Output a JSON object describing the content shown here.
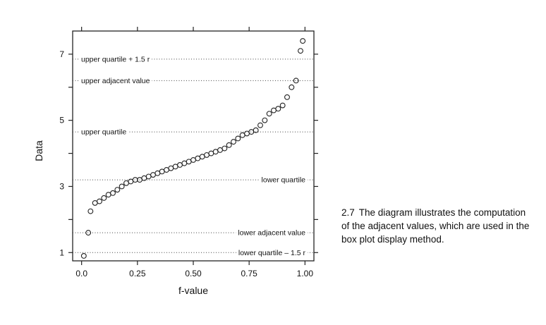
{
  "chart_data": {
    "type": "scatter",
    "title": "",
    "xlabel": "f-value",
    "ylabel": "Data",
    "xlim": [
      -0.04,
      1.04
    ],
    "ylim": [
      0.75,
      7.7
    ],
    "x_ticks": [
      0.0,
      0.25,
      0.5,
      0.75,
      1.0
    ],
    "x_tick_labels": [
      "0.0",
      "0.25",
      "0.50",
      "0.75",
      "1.00"
    ],
    "y_ticks": [
      1,
      3,
      5,
      7
    ],
    "y_tick_labels": [
      "1",
      "3",
      "5",
      "7"
    ],
    "grid": false,
    "reference_lines": [
      {
        "label": "upper quartile + 1.5 r",
        "y": 6.85,
        "label_side": "left"
      },
      {
        "label": "upper adjacent value",
        "y": 6.2,
        "label_side": "left"
      },
      {
        "label": "upper quartile",
        "y": 4.65,
        "label_side": "left"
      },
      {
        "label": "lower quartile",
        "y": 3.2,
        "label_side": "right"
      },
      {
        "label": "lower adjacent value",
        "y": 1.6,
        "label_side": "right"
      },
      {
        "label": "lower quartile – 1.5 r",
        "y": 1.0,
        "label_side": "right"
      }
    ],
    "series": [
      {
        "x": [
          0.01,
          0.03,
          0.04,
          0.06,
          0.08,
          0.1,
          0.12,
          0.14,
          0.16,
          0.18,
          0.2,
          0.22,
          0.24,
          0.26,
          0.28,
          0.3,
          0.32,
          0.34,
          0.36,
          0.38,
          0.4,
          0.42,
          0.44,
          0.46,
          0.48,
          0.5,
          0.52,
          0.54,
          0.56,
          0.58,
          0.6,
          0.62,
          0.64,
          0.66,
          0.68,
          0.7,
          0.72,
          0.74,
          0.76,
          0.78,
          0.8,
          0.82,
          0.84,
          0.86,
          0.88,
          0.9,
          0.92,
          0.94,
          0.96,
          0.98,
          0.99
        ],
        "y": [
          0.9,
          1.6,
          2.25,
          2.5,
          2.55,
          2.65,
          2.75,
          2.8,
          2.9,
          3.0,
          3.1,
          3.15,
          3.2,
          3.2,
          3.25,
          3.3,
          3.35,
          3.4,
          3.45,
          3.5,
          3.55,
          3.6,
          3.65,
          3.7,
          3.75,
          3.8,
          3.85,
          3.9,
          3.95,
          4.0,
          4.05,
          4.1,
          4.15,
          4.25,
          4.35,
          4.45,
          4.55,
          4.6,
          4.65,
          4.7,
          4.85,
          5.0,
          5.2,
          5.3,
          5.35,
          5.45,
          5.7,
          6.0,
          6.2,
          7.1,
          7.4
        ]
      }
    ]
  },
  "caption": {
    "number": "2.7",
    "text": "The diagram illustrates the computation of the adjacent values, which are used in the box plot display method."
  }
}
